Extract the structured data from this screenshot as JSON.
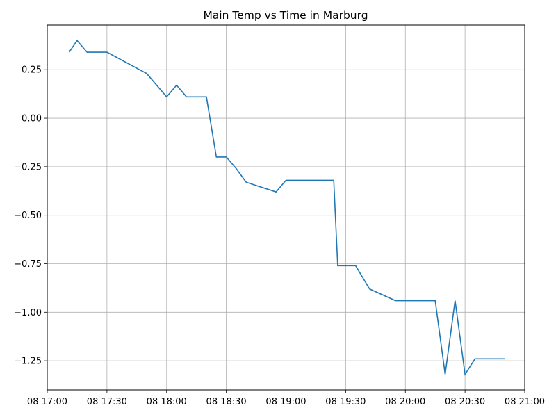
{
  "chart_data": {
    "type": "line",
    "title": "Main Temp vs Time in Marburg",
    "xlabel": "",
    "ylabel": "",
    "grid": true,
    "x_ticks": [
      "08 17:00",
      "08 17:30",
      "08 18:00",
      "08 18:30",
      "08 19:00",
      "08 19:30",
      "08 20:00",
      "08 20:30",
      "08 21:00"
    ],
    "y_ticks": [
      "−1.25",
      "−1.00",
      "−0.75",
      "−0.50",
      "−0.25",
      "0.00",
      "0.25"
    ],
    "xlim": [
      "08 17:00",
      "08 21:00"
    ],
    "ylim": [
      -1.4,
      0.48
    ],
    "series": [
      {
        "color": "#1f77b4",
        "x": [
          "08 17:11",
          "08 17:15",
          "08 17:20",
          "08 17:30",
          "08 17:50",
          "08 18:00",
          "08 18:05",
          "08 18:10",
          "08 18:20",
          "08 18:25",
          "08 18:30",
          "08 18:35",
          "08 18:40",
          "08 18:55",
          "08 19:00",
          "08 19:24",
          "08 19:26",
          "08 19:35",
          "08 19:42",
          "08 19:55",
          "08 20:15",
          "08 20:20",
          "08 20:25",
          "08 20:30",
          "08 20:35",
          "08 20:50"
        ],
        "y": [
          0.34,
          0.4,
          0.34,
          0.34,
          0.23,
          0.11,
          0.17,
          0.11,
          0.11,
          -0.2,
          -0.2,
          -0.26,
          -0.33,
          -0.38,
          -0.32,
          -0.32,
          -0.76,
          -0.76,
          -0.88,
          -0.94,
          -0.94,
          -1.32,
          -0.94,
          -1.32,
          -1.24,
          -1.24
        ]
      }
    ]
  }
}
